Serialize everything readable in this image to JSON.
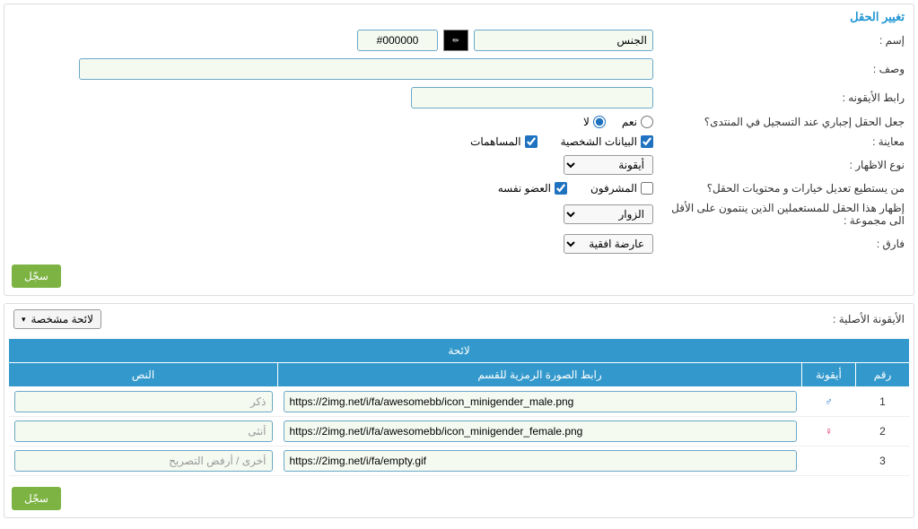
{
  "panel1": {
    "title": "تغيير الحقل",
    "rows": {
      "name_label": "إسم :",
      "name_value": "الجنس",
      "color_value": "#000000",
      "desc_label": "وصف :",
      "icon_link_label": "رابط الأيقونه :",
      "required_label": "جعل الحقل إجباري عند التسجيل في المنتدى؟",
      "yes": "نعم",
      "no": "لا",
      "preview_label": "معاينة :",
      "personal_data": "البيانات الشخصية",
      "contributions": "المساهمات",
      "display_type_label": "نوع الاظهار :",
      "display_type_value": "أيقونة",
      "who_edit_label": "من يستطيع تعديل خيارات و محتويات الحقل؟",
      "mods": "المشرفون",
      "member_self": "العضو نفسه",
      "show_group_label": "إظهار هذا الحقل للمستعملين الذين ينتمون على الأقل الى مجموعة :",
      "visitors": "الزوار",
      "gap_label": "فارق :",
      "gap_value": "عارضة افقية"
    },
    "save": "سجّل"
  },
  "panel2": {
    "title": "الأيقونة الأصلية :",
    "dropdown": "لائحة مشخصة",
    "table": {
      "top_header": "لائحة",
      "headers": {
        "num": "رقم",
        "icon": "أيقونة",
        "url": "رابط الصورة الرمزية للقسم",
        "text": "النص"
      },
      "rows": [
        {
          "num": "1",
          "icon": "♂",
          "icon_class": "male-sym",
          "url": "https://2img.net/i/fa/awesomebb/icon_minigender_male.png",
          "text": "ذكر"
        },
        {
          "num": "2",
          "icon": "♀",
          "icon_class": "female-sym",
          "url": "https://2img.net/i/fa/awesomebb/icon_minigender_female.png",
          "text": "أنثى"
        },
        {
          "num": "3",
          "icon": "",
          "icon_class": "",
          "url": "https://2img.net/i/fa/empty.gif",
          "text": "أخرى / أرفض التصريح"
        }
      ]
    },
    "save": "سجّل"
  }
}
